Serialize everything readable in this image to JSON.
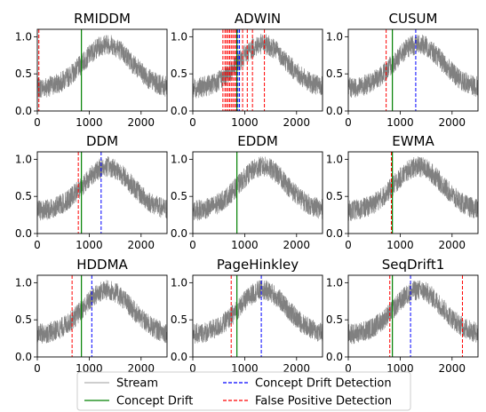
{
  "chart_data": {
    "type": "line",
    "x_range": [
      0,
      2500
    ],
    "y_range": [
      0,
      1.1
    ],
    "x_ticks": [
      0,
      1000,
      2000
    ],
    "x_tick_labels": [
      "0",
      "1000",
      "2000"
    ],
    "y_ticks": [
      0.0,
      0.5,
      1.0
    ],
    "y_tick_labels": [
      "0.0",
      "0.5",
      "1.0"
    ],
    "concept_drift_x": 850,
    "legend": {
      "placement": "bottom-center",
      "entries": [
        {
          "key": "stream",
          "label": "Stream",
          "color": "#b0b0b0",
          "style": "solid"
        },
        {
          "key": "drift",
          "label": "Concept Drift",
          "color": "#008000",
          "style": "solid"
        },
        {
          "key": "detect",
          "label": "Concept Drift Detection",
          "color": "#0000ff",
          "style": "dashed"
        },
        {
          "key": "fp",
          "label": "False Positive Detection",
          "color": "#ff0000",
          "style": "dashed"
        }
      ]
    },
    "colors": {
      "stream": "#808080",
      "drift": "#008000",
      "detection": "#0000ff",
      "false_positive": "#ff0000"
    },
    "panels": [
      {
        "title": "RMIDDM",
        "detections": [],
        "false_positives": [
          30
        ]
      },
      {
        "title": "ADWIN",
        "detections": [
          870,
          900
        ],
        "false_positives": [
          580,
          620,
          650,
          680,
          710,
          740,
          770,
          800,
          830,
          960,
          1050,
          1150,
          1380
        ]
      },
      {
        "title": "CUSUM",
        "detections": [
          1300
        ],
        "false_positives": [
          730
        ]
      },
      {
        "title": "DDM",
        "detections": [
          1230
        ],
        "false_positives": [
          790
        ]
      },
      {
        "title": "EDDM",
        "detections": [],
        "false_positives": []
      },
      {
        "title": "EWMA",
        "detections": [],
        "false_positives": [
          830
        ]
      },
      {
        "title": "HDDMA",
        "detections": [
          1050
        ],
        "false_positives": [
          670
        ]
      },
      {
        "title": "PageHinkley",
        "detections": [
          1320
        ],
        "false_positives": [
          740
        ]
      },
      {
        "title": "SeqDrift1",
        "detections": [
          1200
        ],
        "false_positives": [
          800,
          2200
        ]
      }
    ]
  }
}
